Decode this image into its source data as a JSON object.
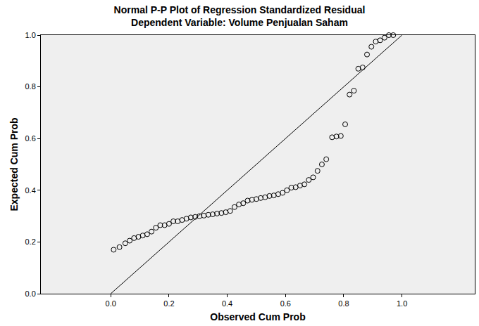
{
  "chart_data": {
    "type": "scatter",
    "title": "Normal P-P Plot of Regression Standardized Residual",
    "subtitle": "Dependent Variable: Volume Penjualan Saham",
    "x_label": "Observed Cum Prob",
    "y_label": "Expected Cum Prob",
    "xlim": [
      -0.24,
      1.25
    ],
    "ylim": [
      0,
      1
    ],
    "xticks": [
      {
        "value": 0,
        "label": "0.0"
      },
      {
        "value": 0.2,
        "label": "0.2"
      },
      {
        "value": 0.4,
        "label": "0.4"
      },
      {
        "value": 0.6,
        "label": "0.6"
      },
      {
        "value": 0.8,
        "label": "0.8"
      },
      {
        "value": 1,
        "label": "1.0"
      }
    ],
    "yticks": [
      {
        "value": 0,
        "label": "0.0"
      },
      {
        "value": 0.2,
        "label": "0.2"
      },
      {
        "value": 0.4,
        "label": "0.4"
      },
      {
        "value": 0.6,
        "label": "0.6"
      },
      {
        "value": 0.8,
        "label": "0.8"
      },
      {
        "value": 1,
        "label": "1.0"
      }
    ],
    "grid": false,
    "series": [
      {
        "type": "scatter",
        "marker": "circle-open",
        "color": "#000000",
        "x": [
          0.01,
          0.03,
          0.05,
          0.065,
          0.08,
          0.095,
          0.11,
          0.125,
          0.14,
          0.155,
          0.17,
          0.185,
          0.2,
          0.215,
          0.23,
          0.245,
          0.26,
          0.275,
          0.29,
          0.305,
          0.32,
          0.335,
          0.35,
          0.365,
          0.38,
          0.395,
          0.41,
          0.425,
          0.44,
          0.455,
          0.47,
          0.485,
          0.5,
          0.515,
          0.53,
          0.545,
          0.56,
          0.575,
          0.59,
          0.605,
          0.62,
          0.635,
          0.65,
          0.665,
          0.68,
          0.695,
          0.71,
          0.725,
          0.74,
          0.76,
          0.775,
          0.79,
          0.805,
          0.82,
          0.835,
          0.85,
          0.865,
          0.88,
          0.895,
          0.91,
          0.925,
          0.94,
          0.955,
          0.97
        ],
        "values": [
          0.17,
          0.18,
          0.195,
          0.205,
          0.215,
          0.22,
          0.225,
          0.23,
          0.24,
          0.255,
          0.265,
          0.265,
          0.27,
          0.28,
          0.28,
          0.285,
          0.29,
          0.295,
          0.297,
          0.3,
          0.302,
          0.305,
          0.307,
          0.31,
          0.312,
          0.315,
          0.32,
          0.335,
          0.345,
          0.35,
          0.36,
          0.363,
          0.366,
          0.37,
          0.373,
          0.378,
          0.38,
          0.385,
          0.39,
          0.4,
          0.41,
          0.412,
          0.418,
          0.423,
          0.44,
          0.45,
          0.475,
          0.5,
          0.52,
          0.605,
          0.608,
          0.61,
          0.655,
          0.77,
          0.785,
          0.87,
          0.875,
          0.925,
          0.955,
          0.975,
          0.98,
          0.99,
          1.0,
          1.0
        ]
      },
      {
        "type": "line",
        "line_style": "solid",
        "color": "#000000",
        "x": [
          0,
          1
        ],
        "values": [
          0,
          1
        ]
      }
    ]
  }
}
